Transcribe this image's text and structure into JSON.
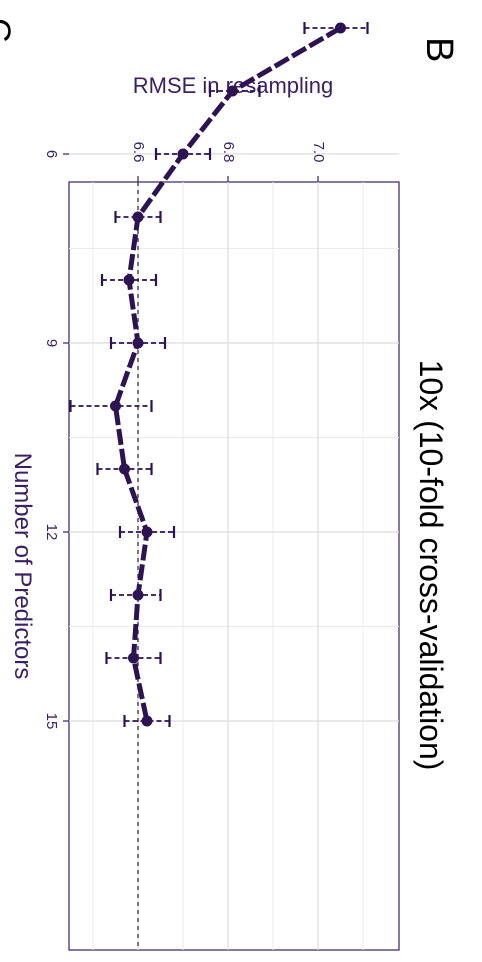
{
  "panel": {
    "letter": "B",
    "letter_right": "C"
  },
  "chart_data": {
    "type": "line",
    "orientation": "rotated-90-clockwise",
    "title": "10x (10-fold cross-validation)",
    "xlabel": "Number of Predictors",
    "ylabel": "RMSE in resampling",
    "x": [
      4,
      5,
      6,
      7,
      8,
      9,
      10,
      11,
      12,
      13,
      14,
      15
    ],
    "series": [
      {
        "values": [
          7.05,
          6.81,
          6.7,
          6.6,
          6.58,
          6.6,
          6.55,
          6.57,
          6.62,
          6.6,
          6.59,
          6.62
        ],
        "error_low": [
          6.97,
          6.76,
          6.64,
          6.55,
          6.52,
          6.54,
          6.45,
          6.51,
          6.56,
          6.54,
          6.53,
          6.57
        ],
        "error_high": [
          7.11,
          6.87,
          6.76,
          6.65,
          6.64,
          6.66,
          6.63,
          6.63,
          6.68,
          6.65,
          6.65,
          6.67
        ]
      }
    ],
    "reference_line": {
      "y": 6.6,
      "style": "dashed"
    },
    "xticks": [
      "6",
      "9",
      "12",
      "15"
    ],
    "xtick_values": [
      6,
      9,
      12,
      15
    ],
    "yticks": [
      "6.6",
      "6.8",
      "7.0"
    ],
    "ytick_values": [
      6.6,
      6.8,
      7.0
    ],
    "xlim": [
      3.5,
      15.5
    ],
    "ylim": [
      6.4,
      7.2
    ],
    "grid": true,
    "color": "#2d1352",
    "text_color": "#3b1f63"
  }
}
